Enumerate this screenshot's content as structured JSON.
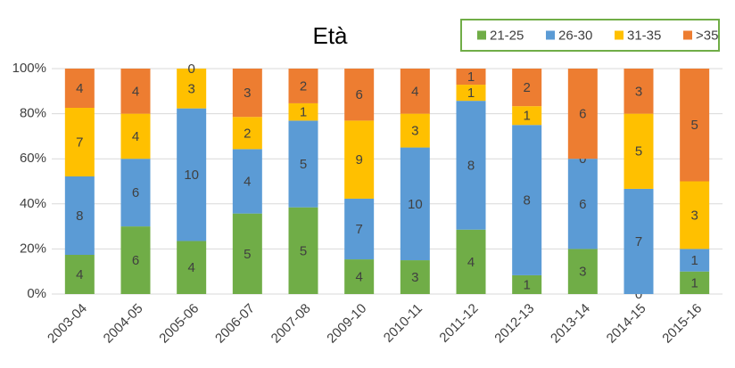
{
  "chart_data": {
    "type": "bar",
    "stacking": "percent",
    "title": "Età",
    "categories": [
      "2003-04",
      "2004-05",
      "2005-06",
      "2006-07",
      "2007-08",
      "2009-10",
      "2010-11",
      "2011-12",
      "2012-13",
      "2013-14",
      "2014-15",
      "2015-16"
    ],
    "series": [
      {
        "name": "21-25",
        "color": "#70ad47",
        "values": [
          4,
          6,
          4,
          5,
          5,
          4,
          3,
          4,
          1,
          3,
          0,
          1
        ]
      },
      {
        "name": "26-30",
        "color": "#5b9bd5",
        "values": [
          8,
          6,
          10,
          4,
          5,
          7,
          10,
          8,
          8,
          6,
          7,
          1
        ]
      },
      {
        "name": "31-35",
        "color": "#ffc000",
        "values": [
          7,
          4,
          3,
          2,
          1,
          9,
          3,
          1,
          1,
          0,
          5,
          3
        ]
      },
      {
        "name": ">35",
        "color": "#ed7d31",
        "values": [
          4,
          4,
          0,
          3,
          2,
          6,
          4,
          1,
          2,
          6,
          3,
          5
        ]
      }
    ],
    "ylim": [
      0,
      100
    ],
    "yticks": [
      {
        "value": 0,
        "label": "0%"
      },
      {
        "value": 20,
        "label": "20%"
      },
      {
        "value": 40,
        "label": "40%"
      },
      {
        "value": 60,
        "label": "60%"
      },
      {
        "value": 80,
        "label": "80%"
      },
      {
        "value": 100,
        "label": "100%"
      }
    ],
    "grid": true,
    "legend": "top-right",
    "legend_border_color": "#70ad47"
  }
}
